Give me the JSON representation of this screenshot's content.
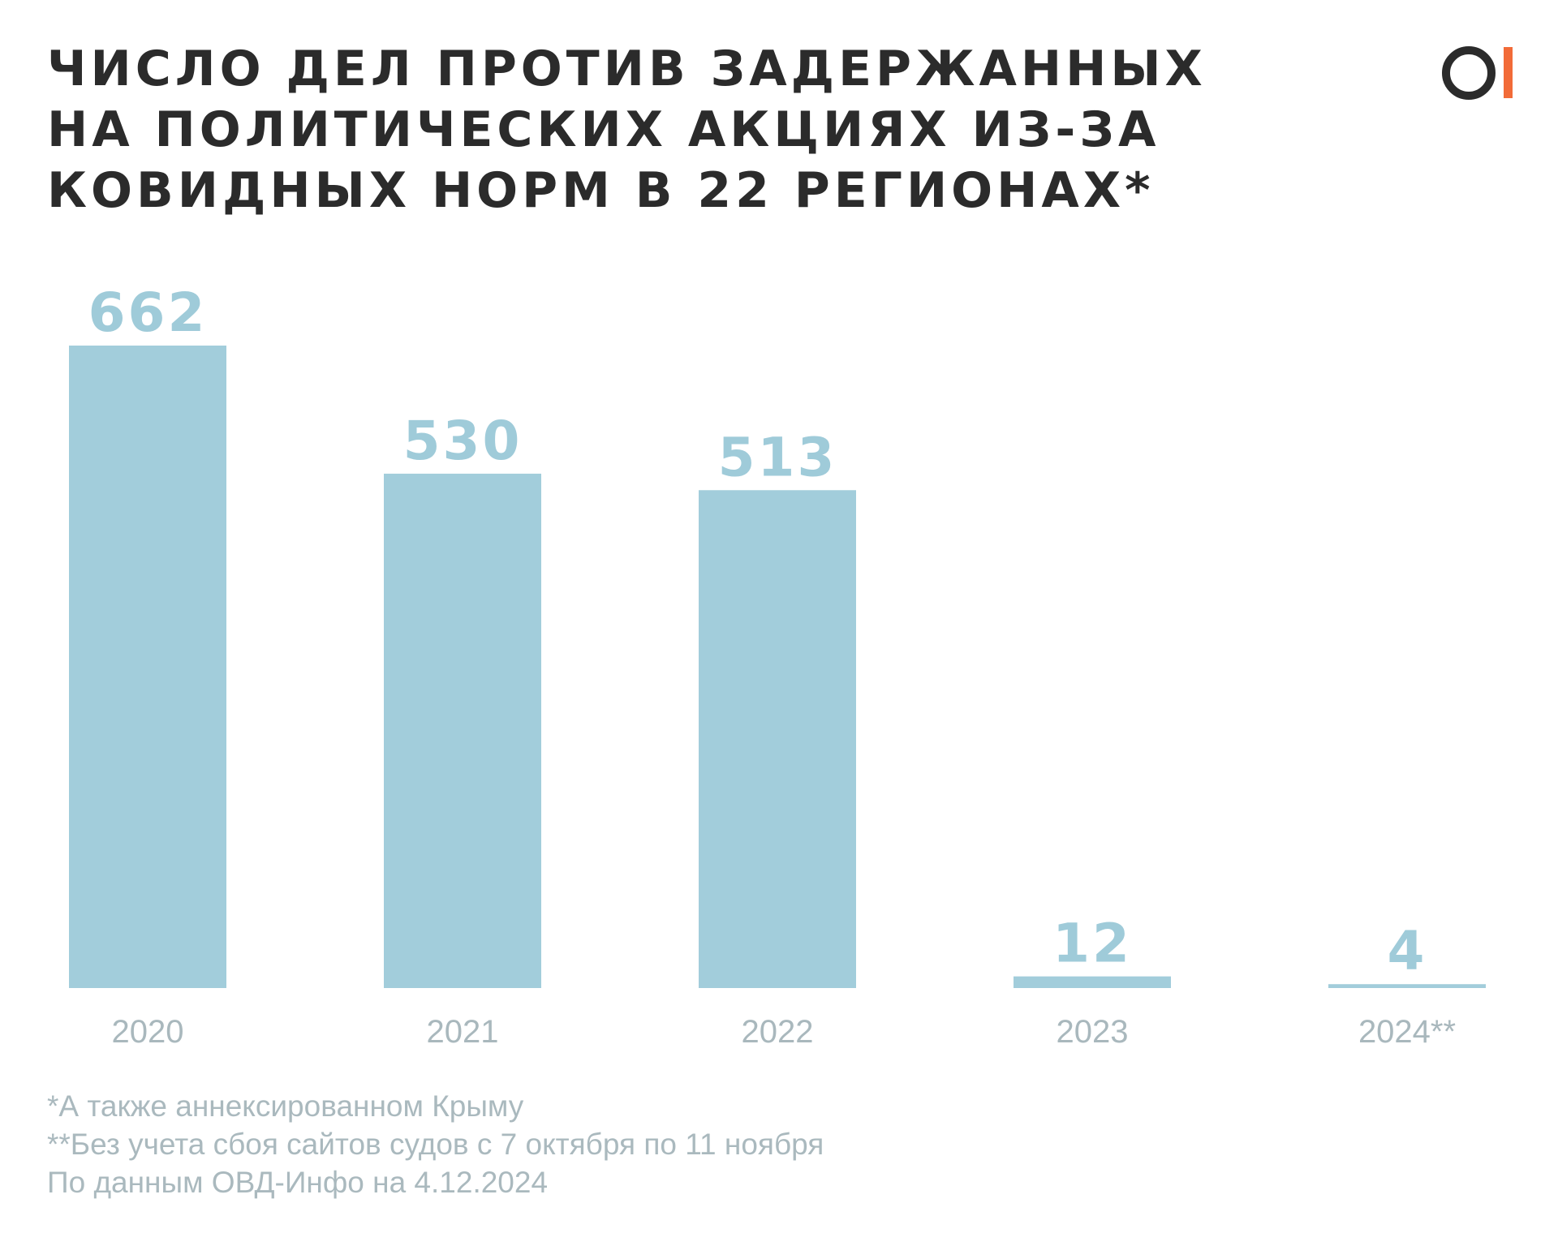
{
  "chart_data": {
    "type": "bar",
    "title": [
      "ЧИСЛО ДЕЛ ПРОТИВ ЗАДЕРЖАННЫХ",
      "НА ПОЛИТИЧЕСКИХ АКЦИЯХ ИЗ-ЗА",
      "КОВИДНЫХ НОРМ В 22 РЕГИОНАХ*"
    ],
    "categories": [
      "2020",
      "2021",
      "2022",
      "2023",
      "2024**"
    ],
    "values": [
      662,
      530,
      513,
      12,
      4
    ],
    "xlabel": "",
    "ylabel": "",
    "ylim": [
      0,
      662
    ],
    "grid": false,
    "data_labels": true
  },
  "footnotes": [
    "*А также аннексированном Крыму",
    "**Без учета сбоя сайтов судов с 7 октября по 11 ноября",
    "По данным ОВД-Инфо на 4.12.2024"
  ],
  "logo": {
    "text": "OI"
  },
  "colors": {
    "bar": "#a2cddb",
    "value_label": "#9fcbd9",
    "tick_label": "#a9b8bd",
    "title": "#2b2b2b",
    "logo_accent": "#f26b38"
  }
}
